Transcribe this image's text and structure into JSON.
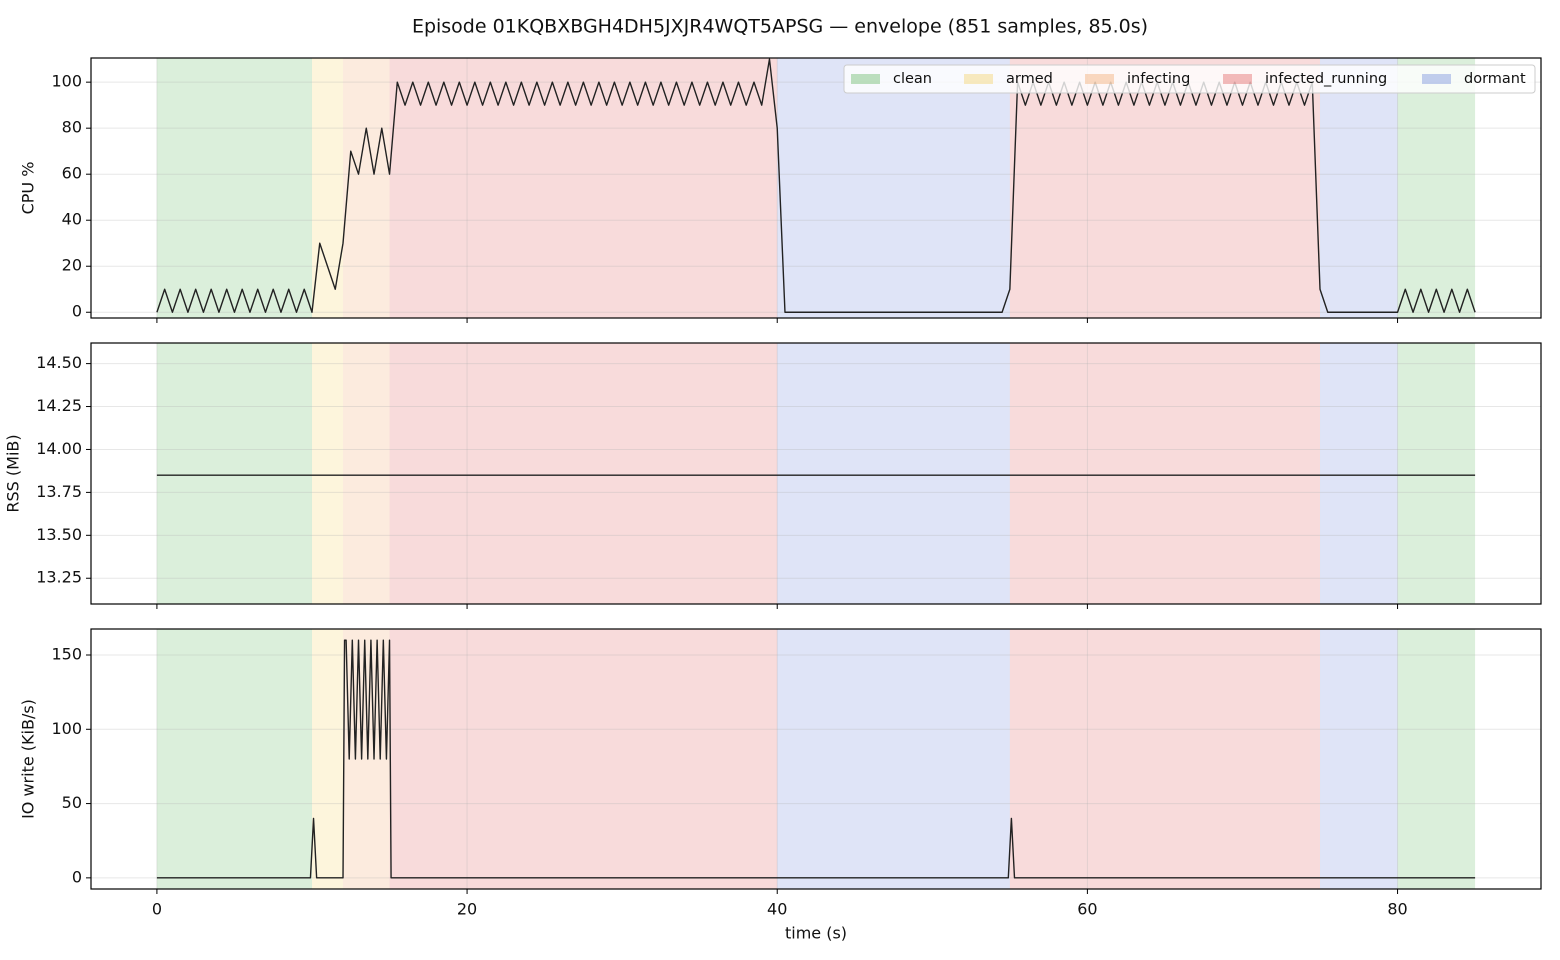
{
  "title": "Episode 01KQBXBGH4DH5JXJR4WQT5APSG — envelope (851 samples, 85.0s)",
  "xlabel": "time (s)",
  "xlim": [
    -4.25,
    89.25
  ],
  "xticks": [
    0,
    20,
    40,
    60,
    80
  ],
  "grid": true,
  "legend": {
    "corner": "upper right",
    "entries": [
      {
        "name": "clean",
        "color": "#2ca02c"
      },
      {
        "name": "armed",
        "color": "#f2c230"
      },
      {
        "name": "infecting",
        "color": "#ee8a3a"
      },
      {
        "name": "infected_running",
        "color": "#d62728"
      },
      {
        "name": "dormant",
        "color": "#3f5fd0"
      }
    ]
  },
  "spans": [
    {
      "phase": "clean",
      "start": 0,
      "end": 10
    },
    {
      "phase": "armed",
      "start": 10,
      "end": 12
    },
    {
      "phase": "infecting",
      "start": 12,
      "end": 15
    },
    {
      "phase": "infected_running",
      "start": 15,
      "end": 40
    },
    {
      "phase": "dormant",
      "start": 40,
      "end": 55
    },
    {
      "phase": "infected_running",
      "start": 55,
      "end": 75
    },
    {
      "phase": "dormant",
      "start": 75,
      "end": 80
    },
    {
      "phase": "clean",
      "start": 80,
      "end": 85
    }
  ],
  "chart_data": [
    {
      "type": "line",
      "ylabel": "CPU %",
      "color": "#222222",
      "ylim": [
        -2.5,
        110.5
      ],
      "yticks": [
        0,
        20,
        40,
        60,
        80,
        100
      ],
      "x": [
        0,
        0.5,
        1,
        1.5,
        2,
        2.5,
        3,
        3.5,
        4,
        4.5,
        5,
        5.5,
        6,
        6.5,
        7,
        7.5,
        8,
        8.5,
        9,
        9.5,
        10,
        10.5,
        11,
        11.5,
        12,
        12.5,
        13,
        13.5,
        14,
        14.5,
        15,
        15.5,
        16,
        16.5,
        17,
        17.5,
        18,
        18.5,
        19,
        19.5,
        20,
        20.5,
        21,
        21.5,
        22,
        22.5,
        23,
        23.5,
        24,
        24.5,
        25,
        25.5,
        26,
        26.5,
        27,
        27.5,
        28,
        28.5,
        29,
        29.5,
        30,
        30.5,
        31,
        31.5,
        32,
        32.5,
        33,
        33.5,
        34,
        34.5,
        35,
        35.5,
        36,
        36.5,
        37,
        37.5,
        38,
        38.5,
        39,
        39.5,
        40,
        40.5,
        41,
        41.5,
        42,
        42.5,
        43,
        43.5,
        44,
        44.5,
        45,
        45.5,
        46,
        46.5,
        47,
        47.5,
        48,
        48.5,
        49,
        49.5,
        50,
        50.5,
        51,
        51.5,
        52,
        52.5,
        53,
        53.5,
        54,
        54.5,
        55,
        55.5,
        56,
        56.5,
        57,
        57.5,
        58,
        58.5,
        59,
        59.5,
        60,
        60.5,
        61,
        61.5,
        62,
        62.5,
        63,
        63.5,
        64,
        64.5,
        65,
        65.5,
        66,
        66.5,
        67,
        67.5,
        68,
        68.5,
        69,
        69.5,
        70,
        70.5,
        71,
        71.5,
        72,
        72.5,
        73,
        73.5,
        74,
        74.5,
        75,
        75.5,
        76,
        76.5,
        77,
        77.5,
        78,
        78.5,
        79,
        79.5,
        80,
        80.5,
        81,
        81.5,
        82,
        82.5,
        83,
        83.5,
        84,
        84.5,
        85
      ],
      "values": [
        0,
        10,
        0,
        10,
        0,
        10,
        0,
        10,
        0,
        10,
        0,
        10,
        0,
        10,
        0,
        10,
        0,
        10,
        0,
        10,
        0,
        30,
        20,
        10,
        30,
        70,
        60,
        80,
        60,
        80,
        60,
        100,
        90,
        100,
        90,
        100,
        90,
        100,
        90,
        100,
        90,
        100,
        90,
        100,
        90,
        100,
        90,
        100,
        90,
        100,
        90,
        100,
        90,
        100,
        90,
        100,
        90,
        100,
        90,
        100,
        90,
        100,
        90,
        100,
        90,
        100,
        90,
        100,
        90,
        100,
        90,
        100,
        90,
        100,
        90,
        100,
        90,
        100,
        90,
        110,
        80,
        0,
        0,
        0,
        0,
        0,
        0,
        0,
        0,
        0,
        0,
        0,
        0,
        0,
        0,
        0,
        0,
        0,
        0,
        0,
        0,
        0,
        0,
        0,
        0,
        0,
        0,
        0,
        0,
        0,
        10,
        100,
        90,
        100,
        90,
        100,
        90,
        100,
        90,
        100,
        90,
        100,
        90,
        100,
        90,
        100,
        90,
        100,
        90,
        100,
        90,
        100,
        90,
        100,
        90,
        100,
        90,
        100,
        90,
        100,
        90,
        100,
        90,
        100,
        90,
        100,
        90,
        100,
        90,
        100,
        10,
        0,
        0,
        0,
        0,
        0,
        0,
        0,
        0,
        0,
        0,
        10,
        0,
        10,
        0,
        10,
        0,
        10,
        0,
        10,
        0
      ]
    },
    {
      "type": "line",
      "ylabel": "RSS (MiB)",
      "color": "#222222",
      "ylim": [
        13.1,
        14.62
      ],
      "yticks": [
        13.25,
        {
          "value": 13.5,
          "label": "13.50"
        },
        13.75,
        {
          "value": 14,
          "label": "14.00"
        },
        14.25,
        {
          "value": 14.5,
          "label": "14.50"
        }
      ],
      "x": [
        0,
        85
      ],
      "values": [
        13.85,
        13.85
      ]
    },
    {
      "type": "line",
      "ylabel": "IO write (KiB/s)",
      "color": "#222222",
      "ylim": [
        -7.5,
        167.5
      ],
      "yticks": [
        0,
        50,
        100,
        150
      ],
      "x": [
        0,
        9.9,
        10.1,
        10.3,
        12,
        12.1,
        12.2,
        12.4,
        12.6,
        12.8,
        13,
        13.2,
        13.4,
        13.6,
        13.8,
        14,
        14.2,
        14.4,
        14.6,
        14.8,
        15,
        15.1,
        54.9,
        55.1,
        55.3,
        85
      ],
      "values": [
        0,
        0,
        40,
        0,
        0,
        160,
        160,
        80,
        160,
        80,
        160,
        80,
        160,
        80,
        160,
        80,
        160,
        80,
        160,
        80,
        160,
        0,
        0,
        40,
        0,
        0
      ]
    }
  ]
}
